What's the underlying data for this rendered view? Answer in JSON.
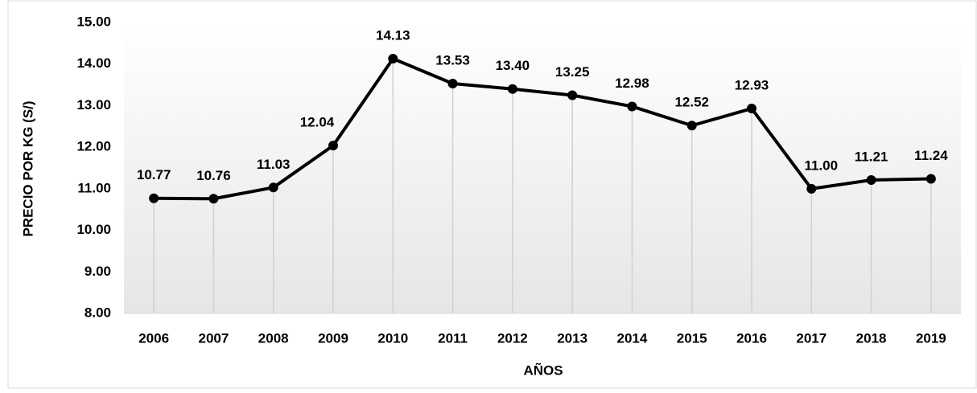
{
  "chart_data": {
    "type": "line",
    "x_label": "AÑOS",
    "y_label": "PRECIO POR KG (S/)",
    "categories": [
      "2006",
      "2007",
      "2008",
      "2009",
      "2010",
      "2011",
      "2012",
      "2013",
      "2014",
      "2015",
      "2016",
      "2017",
      "2018",
      "2019"
    ],
    "values": [
      10.77,
      10.76,
      11.03,
      12.04,
      14.13,
      13.53,
      13.4,
      13.25,
      12.98,
      12.52,
      12.93,
      11.0,
      11.21,
      11.24
    ],
    "value_labels": [
      "10.77",
      "10.76",
      "11.03",
      "12.04",
      "14.13",
      "13.53",
      "13.40",
      "13.25",
      "12.98",
      "12.52",
      "12.93",
      "11.00",
      "11.21",
      "11.24"
    ],
    "color": "#000000",
    "ylim": [
      8,
      15
    ],
    "yticks": [
      {
        "value": 8,
        "label": "8.00"
      },
      {
        "value": 9,
        "label": "9.00"
      },
      {
        "value": 10,
        "label": "10.00"
      },
      {
        "value": 11,
        "label": "11.00"
      },
      {
        "value": 12,
        "label": "12.00"
      },
      {
        "value": 13,
        "label": "13.00"
      },
      {
        "value": 14,
        "label": "14.00"
      },
      {
        "value": 15,
        "label": "15.00"
      }
    ],
    "drop_lines": true
  }
}
